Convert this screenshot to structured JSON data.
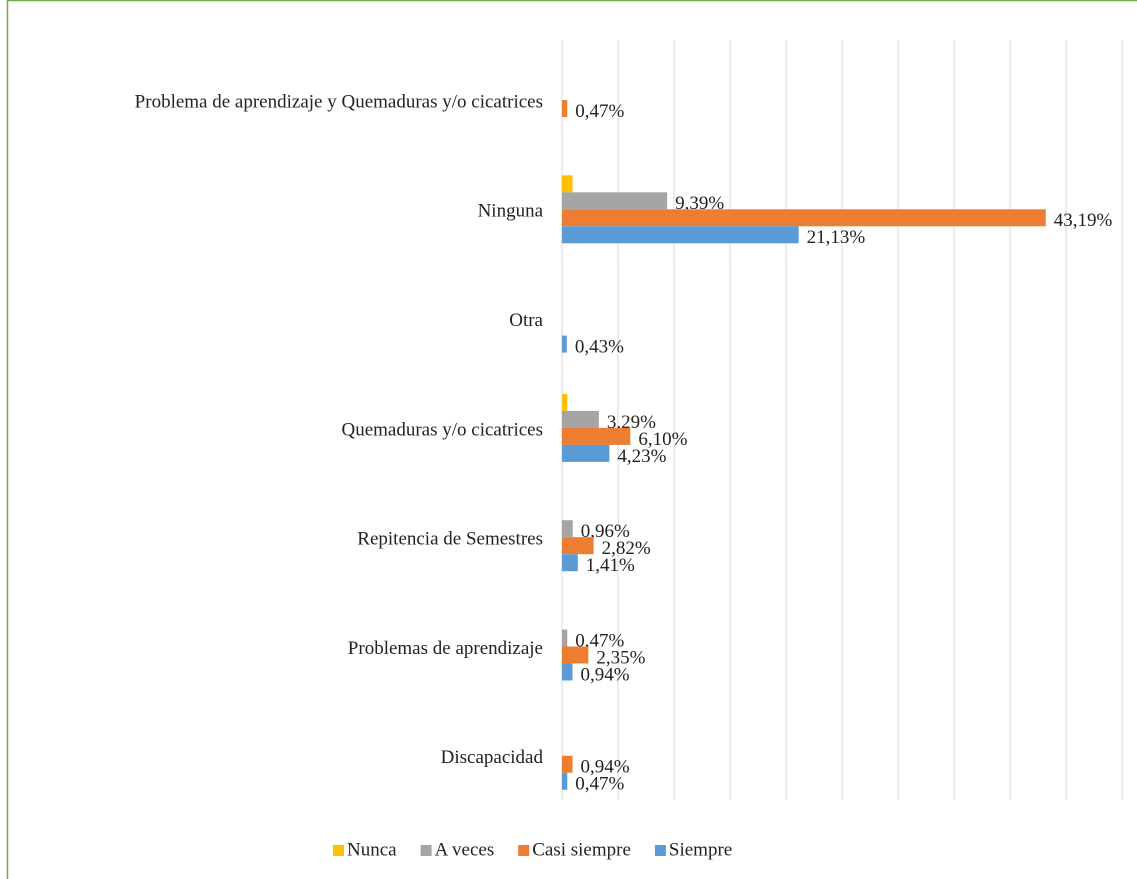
{
  "chart_data": {
    "type": "hbar",
    "categories": [
      "Problema de aprendizaje y Quemaduras y/o cicatrices",
      "Ninguna",
      "Otra",
      "Quemaduras y/o cicatrices",
      "Repitencia de Semestres",
      "Problemas de aprendizaje",
      "Discapacidad"
    ],
    "series": [
      {
        "name": "Nunca",
        "color": "#ffc000",
        "values": [
          null,
          0.94,
          null,
          0.47,
          null,
          null,
          null
        ]
      },
      {
        "name": "A veces",
        "color": "#a5a5a5",
        "values": [
          null,
          9.39,
          null,
          3.29,
          0.96,
          0.47,
          null
        ],
        "value_labels": [
          null,
          "9,39%",
          null,
          "3,29%",
          "0,96%",
          "0,47%",
          null
        ]
      },
      {
        "name": "Casi siempre",
        "color": "#ed7d31",
        "values": [
          0.47,
          43.19,
          null,
          6.1,
          2.82,
          2.35,
          0.94
        ],
        "value_labels": [
          "0,47%",
          "43,19%",
          null,
          "6,10%",
          "2,82%",
          "2,35%",
          "0,94%"
        ]
      },
      {
        "name": "Siempre",
        "color": "#5b9bd5",
        "values": [
          null,
          21.13,
          0.43,
          4.23,
          1.41,
          0.94,
          0.47
        ],
        "value_labels": [
          null,
          "21,13%",
          "0,43%",
          "4,23%",
          "1,41%",
          "0,94%",
          "0,47%"
        ]
      }
    ],
    "xlim": [
      0,
      50
    ],
    "xticks": [
      0,
      5,
      10,
      15,
      20,
      25,
      30,
      35,
      40,
      45,
      50
    ],
    "grid": true,
    "legend": "bottom"
  }
}
